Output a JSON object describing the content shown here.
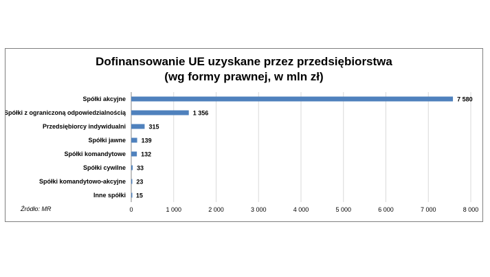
{
  "chart_data": {
    "type": "bar",
    "orientation": "horizontal",
    "title_line1": "Dofinansowanie UE uzyskane przez przedsiębiorstwa",
    "title_line2": "(wg formy prawnej, w mln zł)",
    "categories": [
      "Spółki akcyjne",
      "Spółki z ograniczoną odpowiedzialnością",
      "Przedsiębiorcy indywidualni",
      "Spółki jawne",
      "Spółki komandytowe",
      "Spółki cywilne",
      "Spółki komandytowo-akcyjne",
      "Inne spółki"
    ],
    "values": [
      7580,
      1356,
      315,
      139,
      132,
      33,
      23,
      15
    ],
    "value_labels": [
      "7 580",
      "1 356",
      "315",
      "139",
      "132",
      "33",
      "23",
      "15"
    ],
    "xlim": [
      0,
      8000
    ],
    "xticks": [
      0,
      1000,
      2000,
      3000,
      4000,
      5000,
      6000,
      7000,
      8000
    ],
    "xtick_labels": [
      "0",
      "1 000",
      "2 000",
      "3 000",
      "4 000",
      "5 000",
      "6 000",
      "7 000",
      "8 000"
    ],
    "grid": true,
    "bar_color": "#4f81bd",
    "grid_color": "#d9d9d9",
    "source": "Źródło: MR"
  }
}
